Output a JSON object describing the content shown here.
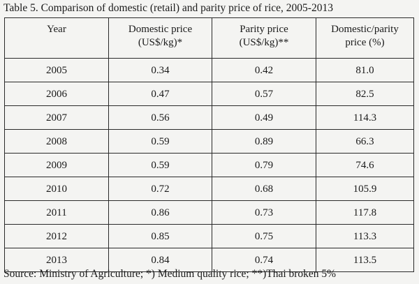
{
  "caption": "Table 5. Comparison of domestic (retail) and parity price of rice, 2005-2013",
  "table": {
    "headers": [
      {
        "line1": "Year",
        "line2": ""
      },
      {
        "line1": "Domestic price",
        "line2": "(US$/kg)*"
      },
      {
        "line1": "Parity price",
        "line2": "(US$/kg)**"
      },
      {
        "line1": "Domestic/parity",
        "line2": "price (%)"
      }
    ],
    "rows": [
      {
        "year": "2005",
        "domestic": "0.34",
        "parity": "0.42",
        "ratio": "81.0"
      },
      {
        "year": "2006",
        "domestic": "0.47",
        "parity": "0.57",
        "ratio": "82.5"
      },
      {
        "year": "2007",
        "domestic": "0.56",
        "parity": "0.49",
        "ratio": "114.3"
      },
      {
        "year": "2008",
        "domestic": "0.59",
        "parity": "0.89",
        "ratio": "66.3"
      },
      {
        "year": "2009",
        "domestic": "0.59",
        "parity": "0.79",
        "ratio": "74.6"
      },
      {
        "year": "2010",
        "domestic": "0.72",
        "parity": "0.68",
        "ratio": "105.9"
      },
      {
        "year": "2011",
        "domestic": "0.86",
        "parity": "0.73",
        "ratio": "117.8"
      },
      {
        "year": "2012",
        "domestic": "0.85",
        "parity": "0.75",
        "ratio": "113.3"
      },
      {
        "year": "2013",
        "domestic": "0.84",
        "parity": "0.74",
        "ratio": "113.5"
      }
    ]
  },
  "source": "Source: Ministry of Agriculture; *) Medium quality rice; **)Thai broken 5%"
}
